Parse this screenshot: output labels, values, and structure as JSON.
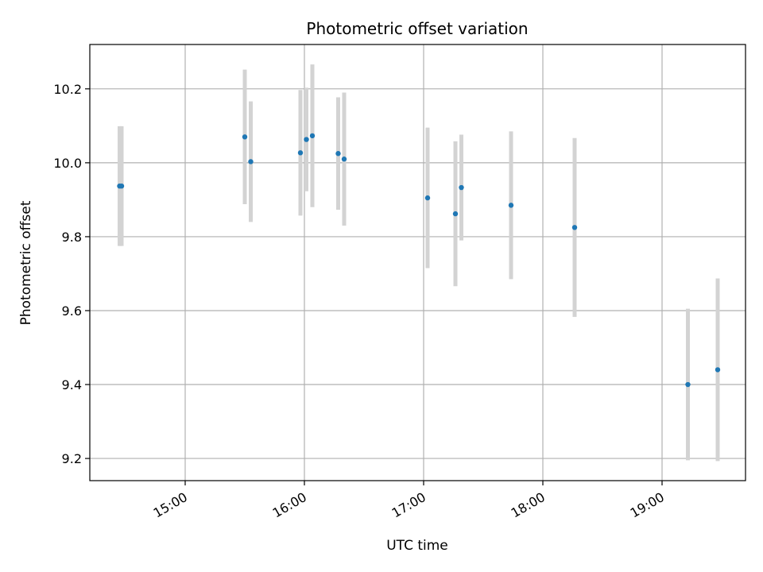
{
  "chart_data": {
    "type": "scatter",
    "title": "Photometric offset variation",
    "xlabel": "UTC time",
    "ylabel": "Photometric offset",
    "x_ticks": [
      "15:00",
      "16:00",
      "17:00",
      "18:00",
      "19:00"
    ],
    "y_ticks": [
      "9.2",
      "9.4",
      "9.6",
      "9.8",
      "10.0",
      "10.2"
    ],
    "xlim": [
      "14:12",
      "19:42"
    ],
    "ylim": [
      9.14,
      10.32
    ],
    "grid": true,
    "colors": {
      "point": "#1f77b4",
      "errorbar": "#d3d3d3",
      "grid": "#b0b0b0"
    },
    "points": [
      {
        "x": "14:27",
        "y": 9.937,
        "yerr": 0.162
      },
      {
        "x": "14:28",
        "y": 9.937,
        "yerr": 0.162
      },
      {
        "x": "15:30",
        "y": 10.07,
        "yerr": 0.182
      },
      {
        "x": "15:33",
        "y": 10.003,
        "yerr": 0.163
      },
      {
        "x": "15:58",
        "y": 10.027,
        "yerr": 0.17
      },
      {
        "x": "16:01",
        "y": 10.063,
        "yerr": 0.14
      },
      {
        "x": "16:04",
        "y": 10.073,
        "yerr": 0.193
      },
      {
        "x": "16:17",
        "y": 10.025,
        "yerr": 0.152
      },
      {
        "x": "16:20",
        "y": 10.01,
        "yerr": 0.18
      },
      {
        "x": "17:02",
        "y": 9.905,
        "yerr": 0.19
      },
      {
        "x": "17:16",
        "y": 9.862,
        "yerr": 0.196
      },
      {
        "x": "17:19",
        "y": 9.933,
        "yerr": 0.143
      },
      {
        "x": "17:44",
        "y": 9.885,
        "yerr": 0.2
      },
      {
        "x": "18:16",
        "y": 9.825,
        "yerr": 0.242
      },
      {
        "x": "19:13",
        "y": 9.4,
        "yerr": 0.205
      },
      {
        "x": "19:28",
        "y": 9.44,
        "yerr": 0.247
      }
    ]
  }
}
